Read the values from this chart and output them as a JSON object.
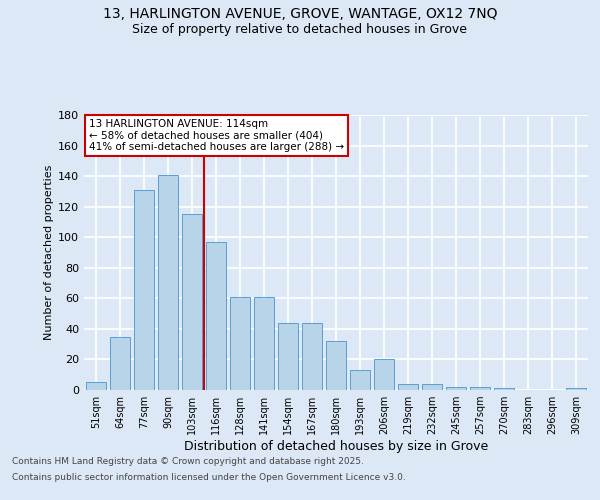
{
  "title_line1": "13, HARLINGTON AVENUE, GROVE, WANTAGE, OX12 7NQ",
  "title_line2": "Size of property relative to detached houses in Grove",
  "xlabel": "Distribution of detached houses by size in Grove",
  "ylabel": "Number of detached properties",
  "categories": [
    "51sqm",
    "64sqm",
    "77sqm",
    "90sqm",
    "103sqm",
    "116sqm",
    "128sqm",
    "141sqm",
    "154sqm",
    "167sqm",
    "180sqm",
    "193sqm",
    "206sqm",
    "219sqm",
    "232sqm",
    "245sqm",
    "257sqm",
    "270sqm",
    "283sqm",
    "296sqm",
    "309sqm"
  ],
  "values": [
    5,
    35,
    131,
    141,
    115,
    97,
    61,
    61,
    44,
    44,
    32,
    13,
    20,
    4,
    4,
    2,
    2,
    1,
    0,
    0,
    1
  ],
  "bar_color": "#b8d4e8",
  "bar_edge_color": "#5a9fd4",
  "background_color": "#dce8f5",
  "grid_color": "#ffffff",
  "vline_color": "#cc0000",
  "vline_index": 4.5,
  "annotation_title": "13 HARLINGTON AVENUE: 114sqm",
  "annotation_line2": "← 58% of detached houses are smaller (404)",
  "annotation_line3": "41% of semi-detached houses are larger (288) →",
  "annotation_box_color": "#ffffff",
  "annotation_box_edge": "#cc0000",
  "ylim": [
    0,
    180
  ],
  "yticks": [
    0,
    20,
    40,
    60,
    80,
    100,
    120,
    140,
    160,
    180
  ],
  "footer_line1": "Contains HM Land Registry data © Crown copyright and database right 2025.",
  "footer_line2": "Contains public sector information licensed under the Open Government Licence v3.0."
}
